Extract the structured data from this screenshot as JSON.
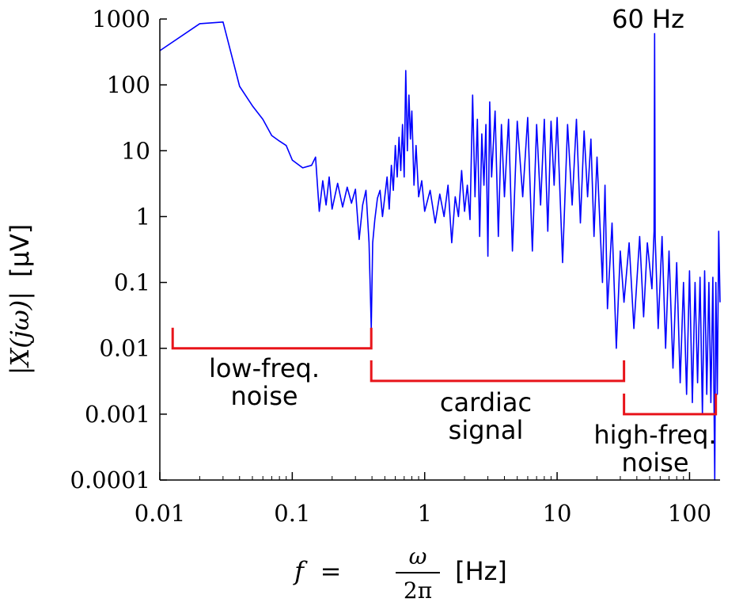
{
  "chart_data": {
    "type": "line",
    "x_scale": "log",
    "y_scale": "log",
    "xlim": [
      0.01,
      170
    ],
    "ylim": [
      0.0001,
      1000
    ],
    "x_ticks": [
      {
        "value": 0.01,
        "label": "0.01"
      },
      {
        "value": 0.1,
        "label": "0.1"
      },
      {
        "value": 1,
        "label": "1"
      },
      {
        "value": 10,
        "label": "10"
      },
      {
        "value": 100,
        "label": "100"
      }
    ],
    "y_ticks": [
      {
        "value": 1000,
        "label": "1000"
      },
      {
        "value": 100,
        "label": "100"
      },
      {
        "value": 10,
        "label": "10"
      },
      {
        "value": 1,
        "label": "1"
      },
      {
        "value": 0.1,
        "label": "0.1"
      },
      {
        "value": 0.01,
        "label": "0.01"
      },
      {
        "value": 0.001,
        "label": "0.001"
      },
      {
        "value": 0.0001,
        "label": "0.0001"
      }
    ],
    "xlabel": {
      "math": "f = ω / 2π",
      "f": "f",
      "eq": "=",
      "num": "ω",
      "den": "2π",
      "unit": "[Hz]"
    },
    "ylabel": {
      "math": "|X(jω)|",
      "unit": "[μV]"
    },
    "line_color": "#0000ff",
    "bracket_color": "#e8141a",
    "series": [
      {
        "points": [
          [
            0.01,
            330
          ],
          [
            0.02,
            850
          ],
          [
            0.03,
            900
          ],
          [
            0.04,
            95
          ],
          [
            0.05,
            48
          ],
          [
            0.06,
            30
          ],
          [
            0.07,
            17
          ],
          [
            0.08,
            14
          ],
          [
            0.09,
            12
          ],
          [
            0.1,
            7.2
          ],
          [
            0.12,
            5.5
          ],
          [
            0.14,
            6.0
          ],
          [
            0.15,
            8.0
          ],
          [
            0.155,
            3.0
          ],
          [
            0.16,
            1.2
          ],
          [
            0.17,
            3.5
          ],
          [
            0.18,
            1.5
          ],
          [
            0.19,
            4.0
          ],
          [
            0.2,
            1.3
          ],
          [
            0.22,
            3.2
          ],
          [
            0.24,
            1.4
          ],
          [
            0.26,
            2.8
          ],
          [
            0.28,
            1.6
          ],
          [
            0.3,
            2.6
          ],
          [
            0.32,
            0.45
          ],
          [
            0.34,
            1.5
          ],
          [
            0.36,
            2.5
          ],
          [
            0.38,
            0.4
          ],
          [
            0.395,
            0.02
          ],
          [
            0.405,
            0.4
          ],
          [
            0.42,
            0.9
          ],
          [
            0.44,
            1.9
          ],
          [
            0.46,
            2.5
          ],
          [
            0.48,
            1.0
          ],
          [
            0.5,
            2.0
          ],
          [
            0.52,
            4.0
          ],
          [
            0.54,
            1.3
          ],
          [
            0.56,
            6.0
          ],
          [
            0.58,
            2.5
          ],
          [
            0.6,
            12
          ],
          [
            0.62,
            4.0
          ],
          [
            0.64,
            16
          ],
          [
            0.66,
            5.0
          ],
          [
            0.68,
            25
          ],
          [
            0.7,
            4.0
          ],
          [
            0.72,
            165
          ],
          [
            0.74,
            10
          ],
          [
            0.76,
            70
          ],
          [
            0.78,
            15
          ],
          [
            0.8,
            40
          ],
          [
            0.83,
            3.0
          ],
          [
            0.86,
            12
          ],
          [
            0.9,
            2.0
          ],
          [
            0.95,
            3.5
          ],
          [
            1.0,
            1.2
          ],
          [
            1.1,
            2.5
          ],
          [
            1.2,
            0.8
          ],
          [
            1.3,
            2.2
          ],
          [
            1.4,
            1.0
          ],
          [
            1.5,
            3.0
          ],
          [
            1.6,
            0.4
          ],
          [
            1.7,
            2.0
          ],
          [
            1.8,
            1.0
          ],
          [
            1.9,
            5.0
          ],
          [
            2.0,
            1.2
          ],
          [
            2.1,
            3.0
          ],
          [
            2.2,
            0.9
          ],
          [
            2.3,
            70
          ],
          [
            2.4,
            2.0
          ],
          [
            2.5,
            30
          ],
          [
            2.6,
            0.5
          ],
          [
            2.7,
            18
          ],
          [
            2.8,
            3.0
          ],
          [
            2.9,
            25
          ],
          [
            3.0,
            0.25
          ],
          [
            3.1,
            55
          ],
          [
            3.2,
            4.0
          ],
          [
            3.4,
            40
          ],
          [
            3.6,
            0.5
          ],
          [
            3.8,
            25
          ],
          [
            4.0,
            2.0
          ],
          [
            4.3,
            30
          ],
          [
            4.6,
            0.3
          ],
          [
            5.0,
            28
          ],
          [
            5.5,
            2.0
          ],
          [
            6.0,
            32
          ],
          [
            6.5,
            0.3
          ],
          [
            7.0,
            25
          ],
          [
            7.5,
            1.5
          ],
          [
            8.0,
            30
          ],
          [
            8.5,
            0.6
          ],
          [
            9.0,
            28
          ],
          [
            9.5,
            3.0
          ],
          [
            10.0,
            32
          ],
          [
            11.0,
            0.2
          ],
          [
            12.0,
            25
          ],
          [
            13.0,
            1.5
          ],
          [
            14.0,
            30
          ],
          [
            15.0,
            0.8
          ],
          [
            16.0,
            20
          ],
          [
            17.0,
            2.0
          ],
          [
            18.0,
            15
          ],
          [
            19.0,
            0.5
          ],
          [
            20.0,
            8.0
          ],
          [
            22.0,
            0.1
          ],
          [
            23.0,
            3.0
          ],
          [
            24.0,
            0.04
          ],
          [
            26.0,
            0.8
          ],
          [
            28.0,
            0.01
          ],
          [
            30.0,
            0.3
          ],
          [
            32.0,
            0.05
          ],
          [
            35.0,
            0.4
          ],
          [
            38.0,
            0.02
          ],
          [
            42.0,
            0.5
          ],
          [
            45.0,
            0.03
          ],
          [
            48.0,
            0.4
          ],
          [
            52.0,
            0.08
          ],
          [
            54.0,
            0.6
          ],
          [
            54.5,
            600
          ],
          [
            55.0,
            0.5
          ],
          [
            58.0,
            0.02
          ],
          [
            62.0,
            0.5
          ],
          [
            66.0,
            0.01
          ],
          [
            70.0,
            0.3
          ],
          [
            75.0,
            0.005
          ],
          [
            80.0,
            0.2
          ],
          [
            85.0,
            0.003
          ],
          [
            90.0,
            0.1
          ],
          [
            95.0,
            0.002
          ],
          [
            100.0,
            0.15
          ],
          [
            105.0,
            0.0015
          ],
          [
            110.0,
            0.1
          ],
          [
            115.0,
            0.003
          ],
          [
            120.0,
            0.12
          ],
          [
            125.0,
            0.001
          ],
          [
            130.0,
            0.15
          ],
          [
            135.0,
            0.002
          ],
          [
            140.0,
            0.1
          ],
          [
            145.0,
            0.0015
          ],
          [
            150.0,
            0.12
          ],
          [
            155.0,
            0.0001
          ],
          [
            158.0,
            0.1
          ],
          [
            162.0,
            0.002
          ],
          [
            166.0,
            0.6
          ],
          [
            170.0,
            0.05
          ]
        ]
      }
    ],
    "annotations": [
      {
        "text": "60 Hz",
        "lines": [
          "60 Hz"
        ]
      },
      {
        "text": "low-freq. noise",
        "lines": [
          "low-freq.",
          "noise"
        ]
      },
      {
        "text": "cardiac signal",
        "lines": [
          "cardiac",
          "signal"
        ]
      },
      {
        "text": "high-freq. noise",
        "lines": [
          "high-freq.",
          "noise"
        ]
      }
    ],
    "brackets": [
      {
        "name": "low-freq-bracket",
        "x_from": 0.0125,
        "x_to": 0.395,
        "y": 0.01
      },
      {
        "name": "cardiac-bracket",
        "x_from": 0.395,
        "x_to": 32,
        "y": 0.0032
      },
      {
        "name": "high-freq-bracket",
        "x_from": 32,
        "x_to": 158,
        "y": 0.001
      }
    ],
    "grid": false
  }
}
